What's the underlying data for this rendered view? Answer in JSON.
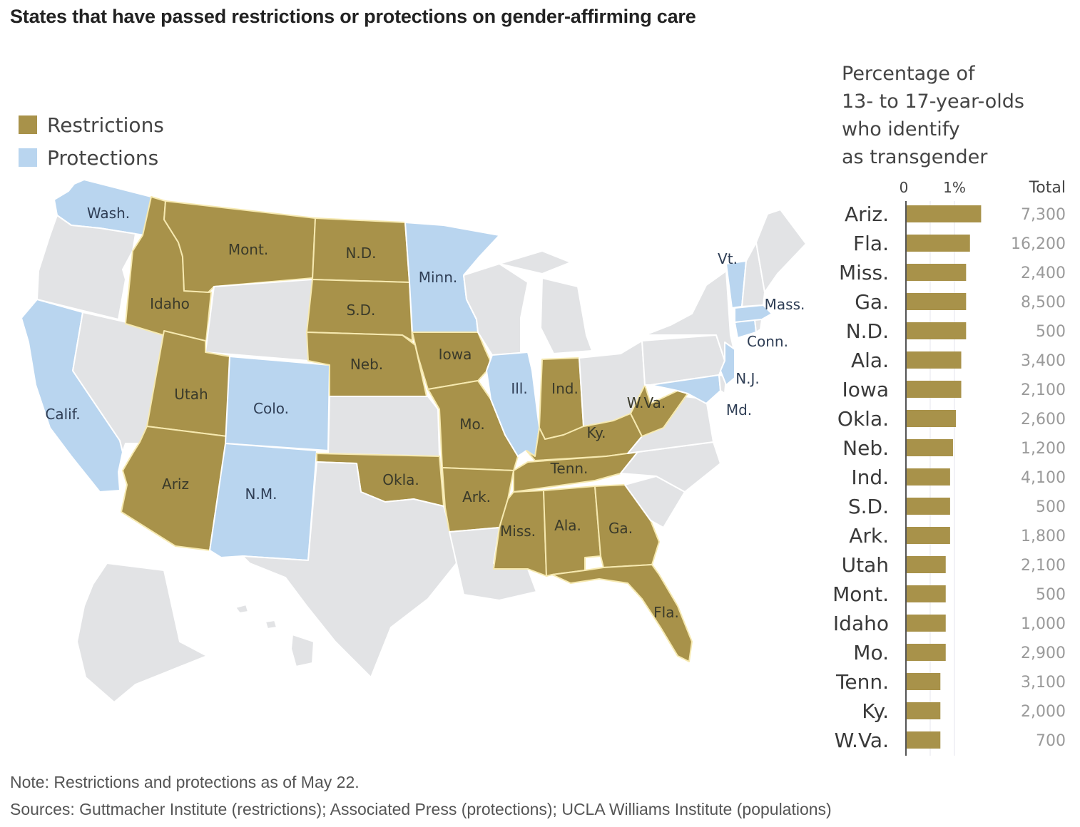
{
  "title": "States that have passed restrictions or protections on gender-affirming care",
  "legend": {
    "items": [
      {
        "label": "Restrictions",
        "color": "#A8924A"
      },
      {
        "label": "Protections",
        "color": "#B9D5EF"
      }
    ]
  },
  "colors": {
    "restriction": "#A8924A",
    "protection": "#B9D5EF",
    "none": "#E2E3E5",
    "border_restriction": "#F6E9B0",
    "border_other": "#FFFFFF"
  },
  "map": {
    "states": [
      {
        "id": "WA",
        "label": "Wash.",
        "status": "protection"
      },
      {
        "id": "OR",
        "label": "",
        "status": "none"
      },
      {
        "id": "CA",
        "label": "Calif.",
        "status": "protection"
      },
      {
        "id": "NV",
        "label": "",
        "status": "none"
      },
      {
        "id": "ID",
        "label": "Idaho",
        "status": "restriction"
      },
      {
        "id": "MT",
        "label": "Mont.",
        "status": "restriction"
      },
      {
        "id": "WY",
        "label": "",
        "status": "none"
      },
      {
        "id": "UT",
        "label": "Utah",
        "status": "restriction"
      },
      {
        "id": "AZ",
        "label": "Ariz",
        "status": "restriction"
      },
      {
        "id": "CO",
        "label": "Colo.",
        "status": "protection"
      },
      {
        "id": "NM",
        "label": "N.M.",
        "status": "protection"
      },
      {
        "id": "ND",
        "label": "N.D.",
        "status": "restriction"
      },
      {
        "id": "SD",
        "label": "S.D.",
        "status": "restriction"
      },
      {
        "id": "NE",
        "label": "Neb.",
        "status": "restriction"
      },
      {
        "id": "KS",
        "label": "",
        "status": "none"
      },
      {
        "id": "OK",
        "label": "Okla.",
        "status": "restriction"
      },
      {
        "id": "TX",
        "label": "",
        "status": "none"
      },
      {
        "id": "MN",
        "label": "Minn.",
        "status": "protection"
      },
      {
        "id": "IA",
        "label": "Iowa",
        "status": "restriction"
      },
      {
        "id": "MO",
        "label": "Mo.",
        "status": "restriction"
      },
      {
        "id": "AR",
        "label": "Ark.",
        "status": "restriction"
      },
      {
        "id": "LA",
        "label": "",
        "status": "none"
      },
      {
        "id": "WI",
        "label": "",
        "status": "none"
      },
      {
        "id": "IL",
        "label": "Ill.",
        "status": "protection"
      },
      {
        "id": "MI",
        "label": "",
        "status": "none"
      },
      {
        "id": "IN",
        "label": "Ind.",
        "status": "restriction"
      },
      {
        "id": "OH",
        "label": "",
        "status": "none"
      },
      {
        "id": "KY",
        "label": "Ky.",
        "status": "restriction"
      },
      {
        "id": "TN",
        "label": "Tenn.",
        "status": "restriction"
      },
      {
        "id": "MS",
        "label": "Miss.",
        "status": "restriction"
      },
      {
        "id": "AL",
        "label": "Ala.",
        "status": "restriction"
      },
      {
        "id": "GA",
        "label": "Ga.",
        "status": "restriction"
      },
      {
        "id": "FL",
        "label": "Fla.",
        "status": "restriction"
      },
      {
        "id": "SC",
        "label": "",
        "status": "none"
      },
      {
        "id": "NC",
        "label": "",
        "status": "none"
      },
      {
        "id": "VA",
        "label": "",
        "status": "none"
      },
      {
        "id": "WV",
        "label": "W.Va.",
        "status": "restriction"
      },
      {
        "id": "PA",
        "label": "",
        "status": "none"
      },
      {
        "id": "NY",
        "label": "",
        "status": "none"
      },
      {
        "id": "MD",
        "label": "Md.",
        "status": "protection"
      },
      {
        "id": "DE",
        "label": "",
        "status": "none"
      },
      {
        "id": "NJ",
        "label": "N.J.",
        "status": "protection"
      },
      {
        "id": "CT",
        "label": "Conn.",
        "status": "protection"
      },
      {
        "id": "RI",
        "label": "",
        "status": "none"
      },
      {
        "id": "MA",
        "label": "Mass.",
        "status": "protection"
      },
      {
        "id": "VT",
        "label": "Vt.",
        "status": "protection"
      },
      {
        "id": "NH",
        "label": "",
        "status": "none"
      },
      {
        "id": "ME",
        "label": "",
        "status": "none"
      },
      {
        "id": "AK",
        "label": "",
        "status": "none"
      },
      {
        "id": "HI",
        "label": "",
        "status": "none"
      }
    ]
  },
  "bar_panel": {
    "heading": [
      "Percentage of",
      "13- to 17-year-olds",
      "who identify",
      "as transgender"
    ],
    "total_heading": "Total"
  },
  "chart_data": {
    "type": "bar",
    "orientation": "horizontal",
    "title": "Percentage of 13- to 17-year-olds who identify as transgender",
    "xlabel": "",
    "ylabel": "",
    "xlim": [
      0,
      1.6
    ],
    "x_ticks": [
      {
        "value": 0,
        "label": "0"
      },
      {
        "value": 1,
        "label": "1%"
      }
    ],
    "gridlines_at": [
      0.5,
      1.0
    ],
    "grid": true,
    "legend": "none",
    "categories": [
      "Ariz.",
      "Fla.",
      "Miss.",
      "Ga.",
      "N.D.",
      "Ala.",
      "Iowa",
      "Okla.",
      "Neb.",
      "Ind.",
      "S.D.",
      "Ark.",
      "Utah",
      "Mont.",
      "Idaho",
      "Mo.",
      "Tenn.",
      "Ky.",
      "W.Va."
    ],
    "values": [
      1.55,
      1.32,
      1.24,
      1.24,
      1.24,
      1.14,
      1.14,
      1.03,
      0.97,
      0.91,
      0.91,
      0.91,
      0.82,
      0.82,
      0.82,
      0.82,
      0.71,
      0.71,
      0.71
    ],
    "totals": [
      "7,300",
      "16,200",
      "2,400",
      "8,500",
      "500",
      "3,400",
      "2,100",
      "2,600",
      "1,200",
      "4,100",
      "500",
      "1,800",
      "2,100",
      "500",
      "1,000",
      "2,900",
      "3,100",
      "2,000",
      "700"
    ],
    "bar_color": "#A8924A"
  },
  "footer": {
    "note": "Note: Restrictions and protections as of May 22.",
    "sources": "Sources: Guttmacher Institute (restrictions); Associated Press (protections); UCLA Williams Institute (populations)"
  }
}
